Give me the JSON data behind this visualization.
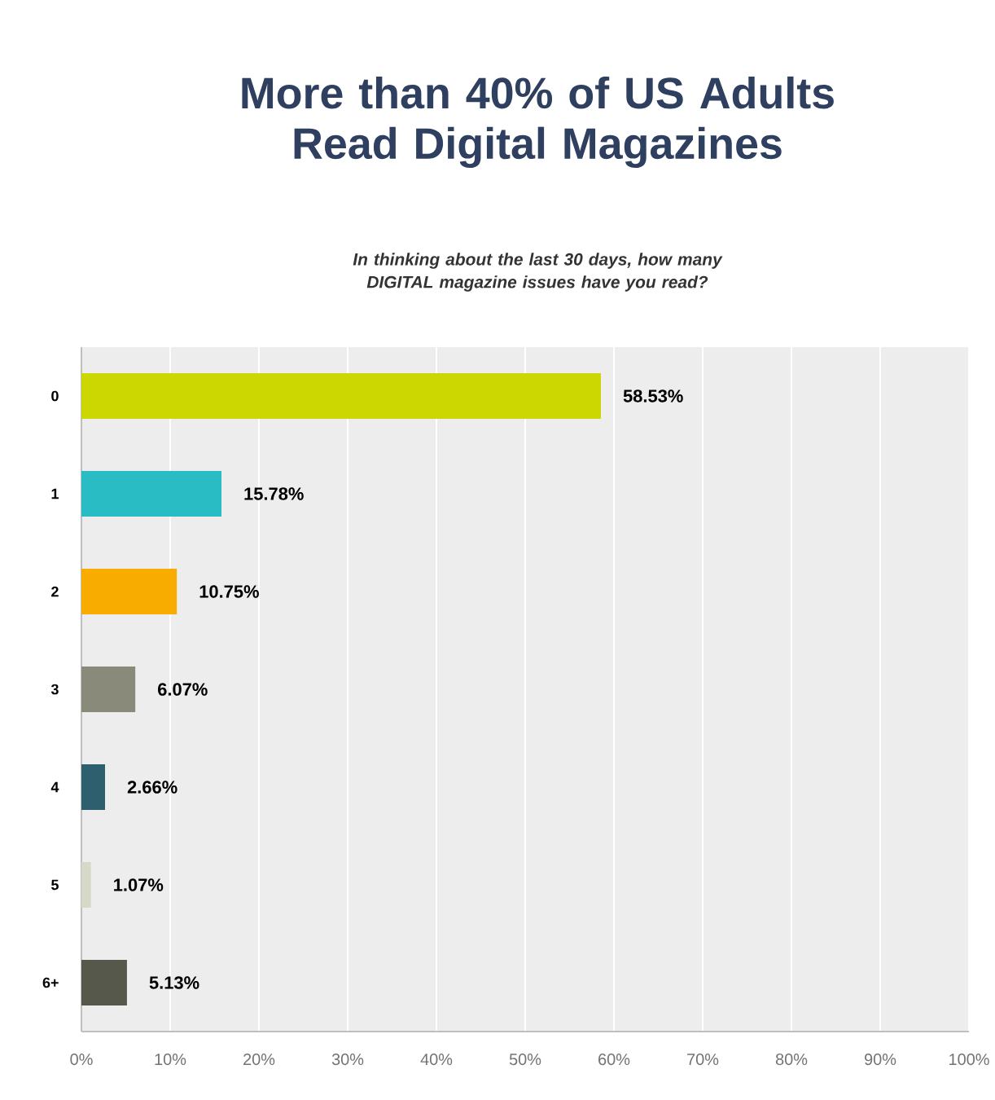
{
  "chart_data": {
    "type": "bar",
    "orientation": "horizontal",
    "title": "More than 40% of US Adults Read Digital Magazines",
    "subtitle": "In thinking about the last 30 days, how many DIGITAL magazine issues have you read?",
    "categories": [
      "0",
      "1",
      "2",
      "3",
      "4",
      "5",
      "6+"
    ],
    "values": [
      58.53,
      15.78,
      10.75,
      6.07,
      2.66,
      1.07,
      5.13
    ],
    "colors": [
      "#ccd600",
      "#29bcc4",
      "#f9ac00",
      "#8a8a7a",
      "#2e5f6e",
      "#d6d9c8",
      "#55584a"
    ],
    "value_labels": [
      "58.53%",
      "15.78%",
      "10.75%",
      "6.07%",
      "2.66%",
      "1.07%",
      "5.13%"
    ],
    "xlim": [
      0,
      100
    ],
    "xticks": [
      {
        "value": 0,
        "label": "0%"
      },
      {
        "value": 10,
        "label": "10%"
      },
      {
        "value": 20,
        "label": "20%"
      },
      {
        "value": 30,
        "label": "30%"
      },
      {
        "value": 40,
        "label": "40%"
      },
      {
        "value": 50,
        "label": "50%"
      },
      {
        "value": 60,
        "label": "60%"
      },
      {
        "value": 70,
        "label": "70%"
      },
      {
        "value": 80,
        "label": "80%"
      },
      {
        "value": 90,
        "label": "90%"
      },
      {
        "value": 100,
        "label": "100%"
      }
    ],
    "grid": "x"
  }
}
